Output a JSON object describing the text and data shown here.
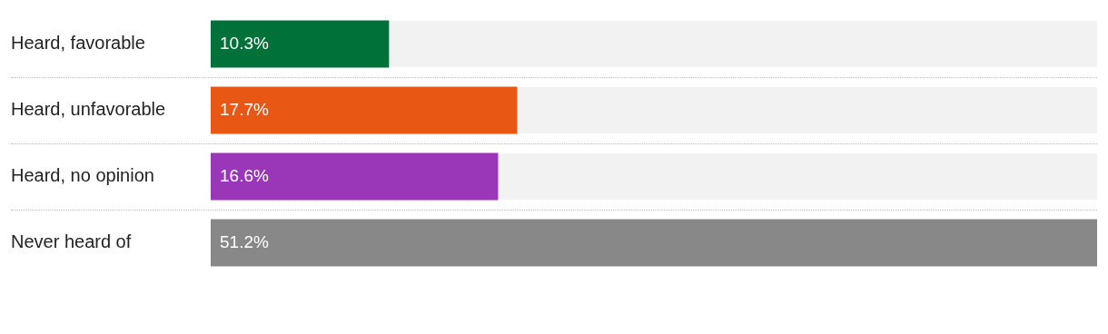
{
  "chart_data": {
    "type": "bar",
    "orientation": "horizontal",
    "categories": [
      "Heard, favorable",
      "Heard, unfavorable",
      "Heard, no opinion",
      "Never heard of"
    ],
    "values": [
      10.3,
      17.7,
      16.6,
      51.2
    ],
    "colors": [
      "#007139",
      "#e85714",
      "#9a36b8",
      "#888888"
    ],
    "value_labels": [
      "10.3%",
      "17.7%",
      "16.6%",
      "51.2%"
    ],
    "xlim": [
      0,
      51.2
    ],
    "tick_labels": "y",
    "legend": false
  }
}
